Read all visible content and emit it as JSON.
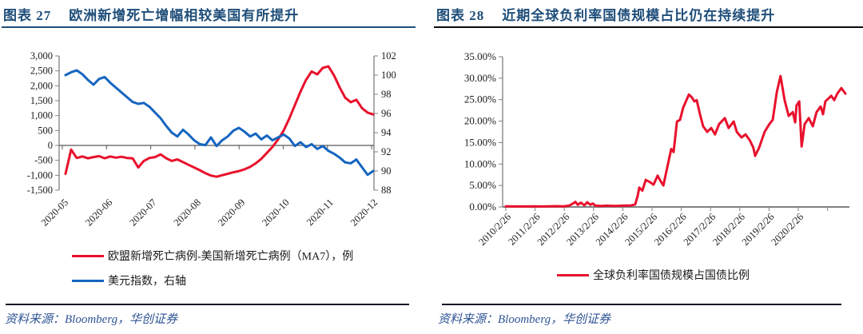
{
  "figures": [
    {
      "label": "图表 27",
      "title": "欧洲新增死亡增幅相较美国有所提升",
      "source": "资料来源：Bloomberg，华创证券"
    },
    {
      "label": "图表 28",
      "title": "近期全球负利率国债规模占比仍在持续提升",
      "source": "资料来源：Bloomberg，华创证券"
    }
  ],
  "colors": {
    "title_navy": "#1F4E79",
    "source_blue": "#2F5496",
    "series_red": "#E8112D",
    "series_blue": "#1565C0",
    "axis_gray": "#808080",
    "tick_text": "#1a1a1a",
    "title_underline_left": "#1F4E79",
    "title_underline_right": "#0a0a0a"
  },
  "chart_data": [
    {
      "id": "fig27",
      "type": "line",
      "title": "欧洲新增死亡增幅相较美国有所提升",
      "x_tick_labels": [
        "2020-05",
        "2020-06",
        "2020-07",
        "2020-08",
        "2020-09",
        "2020-10",
        "2020-11",
        "2020-12"
      ],
      "y_left": {
        "min": -1500,
        "max": 3000,
        "step": 500,
        "tick_labels": [
          "3,000",
          "2,500",
          "2,000",
          "1,500",
          "1,000",
          "500",
          "0",
          "-500",
          "-1,000",
          "-1,500"
        ]
      },
      "y_right": {
        "min": 88,
        "max": 102,
        "step": 2,
        "tick_labels": [
          "102",
          "100",
          "98",
          "96",
          "94",
          "92",
          "90",
          "88"
        ]
      },
      "legend_position": "bottom-left",
      "series": [
        {
          "name": "欧盟新增死亡病例-美国新增死亡病例（MA7），例",
          "axis": "left",
          "color": "#E8112D",
          "values": [
            -950,
            -140,
            -420,
            -370,
            -430,
            -390,
            -360,
            -430,
            -370,
            -410,
            -380,
            -420,
            -430,
            -740,
            -520,
            -420,
            -390,
            -300,
            -430,
            -520,
            -470,
            -560,
            -650,
            -740,
            -830,
            -930,
            -1010,
            -1050,
            -1000,
            -950,
            -900,
            -860,
            -800,
            -720,
            -600,
            -450,
            -250,
            -50,
            200,
            500,
            900,
            1350,
            1800,
            2200,
            2480,
            2380,
            2600,
            2650,
            2350,
            1950,
            1600,
            1450,
            1530,
            1250,
            1100,
            1040
          ]
        },
        {
          "name": "美元指数，右轴",
          "axis": "right",
          "color": "#1565C0",
          "values": [
            100.0,
            100.3,
            100.5,
            100.1,
            99.5,
            99.0,
            99.6,
            99.8,
            99.2,
            98.7,
            98.2,
            97.7,
            97.2,
            97.0,
            97.1,
            96.7,
            96.1,
            95.5,
            94.7,
            94.0,
            93.6,
            94.3,
            93.8,
            93.2,
            92.8,
            92.7,
            93.5,
            92.6,
            93.2,
            93.6,
            94.2,
            94.5,
            94.1,
            93.6,
            93.9,
            93.3,
            93.7,
            93.2,
            93.5,
            93.8,
            93.4,
            92.6,
            93.0,
            92.5,
            92.8,
            92.3,
            92.6,
            92.1,
            91.8,
            91.4,
            90.9,
            90.8,
            91.2,
            90.4,
            89.6,
            90.0
          ]
        }
      ]
    },
    {
      "id": "fig28",
      "type": "line",
      "title": "近期全球负利率国债规模占比仍在持续提升",
      "x_tick_labels": [
        "2010/2/26",
        "2011/2/26",
        "2012/2/26",
        "2013/2/26",
        "2014/2/26",
        "2015/2/26",
        "2016/2/26",
        "2017/2/26",
        "2018/2/26",
        "2019/2/26",
        "2020/2/26"
      ],
      "y": {
        "min": 0,
        "max": 35,
        "step": 5,
        "tick_labels": [
          "35.00%",
          "30.00%",
          "25.00%",
          "20.00%",
          "15.00%",
          "10.00%",
          "5.00%",
          "0.00%"
        ]
      },
      "legend_position": "bottom-center",
      "series": [
        {
          "name": "全球负利率国债规模占国债比例",
          "color": "#E8112D",
          "points_note": "pairs of [fraction of x-range, percent value]",
          "points": [
            [
              0,
              0.15
            ],
            [
              0.04,
              0.12
            ],
            [
              0.08,
              0.15
            ],
            [
              0.11,
              0.12
            ],
            [
              0.15,
              0.18
            ],
            [
              0.17,
              0.15
            ],
            [
              0.186,
              0.3
            ],
            [
              0.198,
              0.8
            ],
            [
              0.205,
              1.2
            ],
            [
              0.212,
              0.5
            ],
            [
              0.221,
              1.0
            ],
            [
              0.231,
              0.4
            ],
            [
              0.24,
              1.1
            ],
            [
              0.249,
              0.5
            ],
            [
              0.256,
              0.8
            ],
            [
              0.264,
              0.3
            ],
            [
              0.28,
              0.25
            ],
            [
              0.3,
              0.3
            ],
            [
              0.32,
              0.25
            ],
            [
              0.346,
              0.3
            ],
            [
              0.369,
              0.35
            ],
            [
              0.381,
              0.6
            ],
            [
              0.388,
              2.5
            ],
            [
              0.393,
              4.5
            ],
            [
              0.402,
              3.8
            ],
            [
              0.412,
              6.3
            ],
            [
              0.424,
              5.8
            ],
            [
              0.435,
              5.2
            ],
            [
              0.447,
              7.3
            ],
            [
              0.456,
              6.0
            ],
            [
              0.464,
              5.0
            ],
            [
              0.475,
              9.1
            ],
            [
              0.487,
              13.5
            ],
            [
              0.494,
              12.8
            ],
            [
              0.504,
              19.9
            ],
            [
              0.513,
              20.3
            ],
            [
              0.522,
              23.1
            ],
            [
              0.539,
              26.2
            ],
            [
              0.548,
              25.5
            ],
            [
              0.555,
              24.6
            ],
            [
              0.562,
              24.9
            ],
            [
              0.572,
              21.5
            ],
            [
              0.581,
              18.8
            ],
            [
              0.593,
              17.5
            ],
            [
              0.605,
              18.4
            ],
            [
              0.616,
              16.9
            ],
            [
              0.628,
              19.3
            ],
            [
              0.645,
              20.7
            ],
            [
              0.656,
              18.4
            ],
            [
              0.671,
              19.9
            ],
            [
              0.68,
              17.5
            ],
            [
              0.694,
              16.2
            ],
            [
              0.706,
              16.9
            ],
            [
              0.718,
              15.6
            ],
            [
              0.729,
              13.8
            ],
            [
              0.734,
              11.9
            ],
            [
              0.746,
              13.8
            ],
            [
              0.762,
              17.5
            ],
            [
              0.776,
              19.3
            ],
            [
              0.786,
              20.3
            ],
            [
              0.798,
              26.8
            ],
            [
              0.809,
              30.5
            ],
            [
              0.821,
              24.9
            ],
            [
              0.833,
              21.2
            ],
            [
              0.845,
              22.1
            ],
            [
              0.852,
              19.7
            ],
            [
              0.856,
              23.6
            ],
            [
              0.864,
              24.6
            ],
            [
              0.871,
              14.1
            ],
            [
              0.88,
              19.3
            ],
            [
              0.892,
              20.7
            ],
            [
              0.904,
              18.8
            ],
            [
              0.915,
              22.1
            ],
            [
              0.927,
              23.4
            ],
            [
              0.934,
              21.6
            ],
            [
              0.941,
              24.6
            ],
            [
              0.958,
              25.9
            ],
            [
              0.967,
              24.9
            ],
            [
              0.976,
              26.4
            ],
            [
              0.988,
              27.7
            ],
            [
              1,
              26.4
            ]
          ]
        }
      ]
    }
  ]
}
